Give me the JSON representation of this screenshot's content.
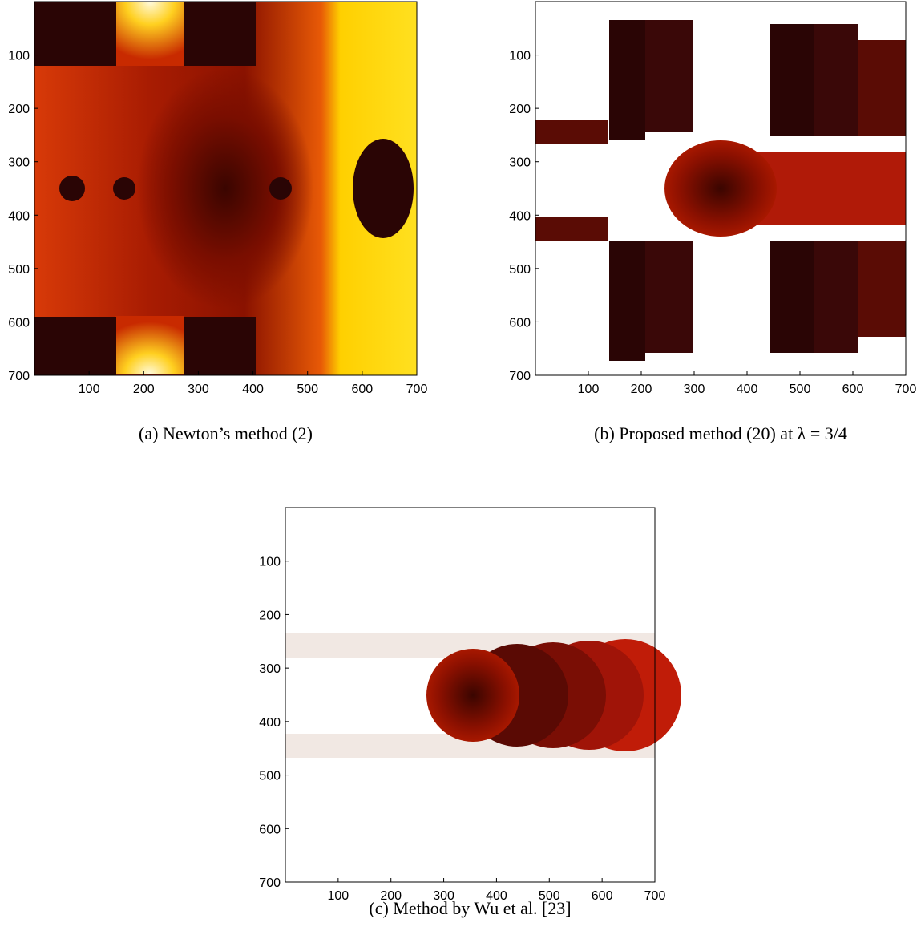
{
  "chart_data": [
    {
      "type": "image",
      "caption": "(a) Newton’s method (2)",
      "xlim": [
        0,
        700
      ],
      "ylim": [
        700,
        0
      ],
      "xticks": [
        100,
        200,
        300,
        400,
        500,
        600,
        700
      ],
      "yticks": [
        100,
        200,
        300,
        400,
        500,
        600,
        700
      ]
    },
    {
      "type": "image",
      "caption": "(b) Proposed method (20) at λ = 3/4",
      "xlim": [
        0,
        700
      ],
      "ylim": [
        700,
        0
      ],
      "xticks": [
        100,
        200,
        300,
        400,
        500,
        600,
        700
      ],
      "yticks": [
        100,
        200,
        300,
        400,
        500,
        600,
        700
      ]
    },
    {
      "type": "image",
      "caption": "(c) Method by Wu et al. [23]",
      "xlim": [
        0,
        700
      ],
      "ylim": [
        700,
        0
      ],
      "xticks": [
        100,
        200,
        300,
        400,
        500,
        600,
        700
      ],
      "yticks": [
        100,
        200,
        300,
        400,
        500,
        600,
        700
      ]
    }
  ]
}
